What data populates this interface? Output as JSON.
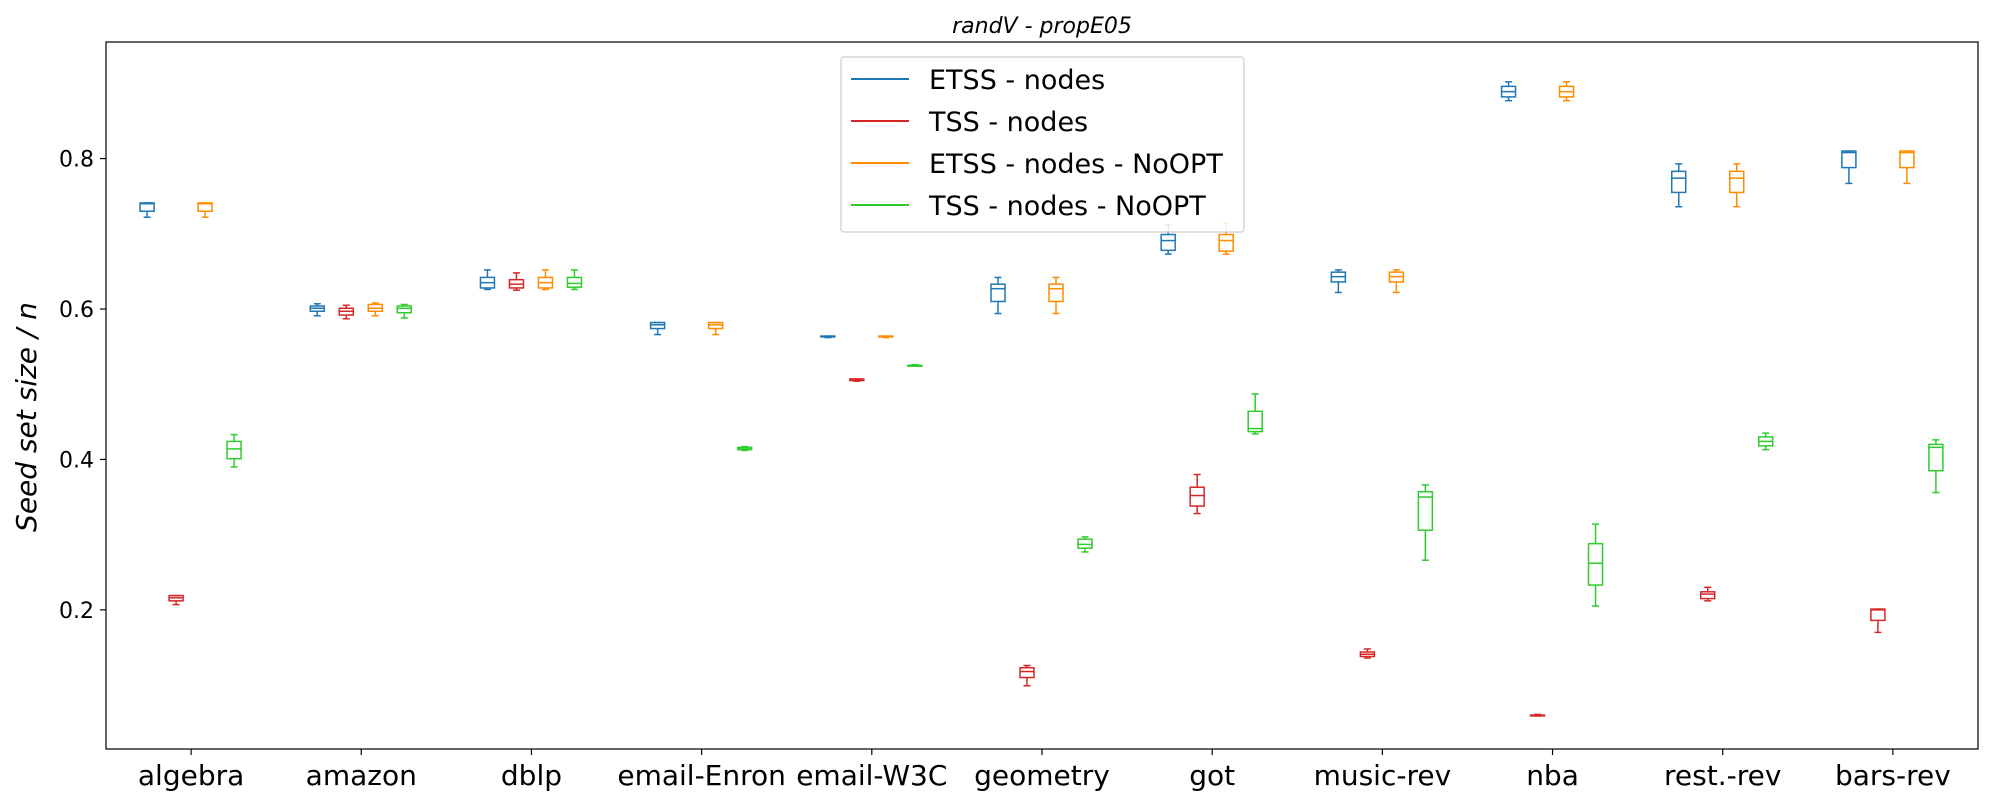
{
  "chart_data": {
    "type": "box",
    "title": "randV - propE05",
    "xlabel": "",
    "ylabel": "Seed set size / n",
    "ylim": [
      0.015,
      0.955
    ],
    "yticks": [
      "0.2",
      "0.4",
      "0.6",
      "0.8"
    ],
    "grid": false,
    "legend_position": "top-center",
    "categories": [
      "algebra",
      "amazon",
      "dblp",
      "email-Enron",
      "email-W3C",
      "geometry",
      "got",
      "music-rev",
      "nba",
      "rest.-rev",
      "bars-rev"
    ],
    "series": [
      {
        "name": "ETSS - nodes",
        "color": "#1f77b4",
        "boxes": [
          {
            "min": 0.722,
            "q1": 0.73,
            "median": 0.74,
            "q3": 0.741,
            "max": 0.741
          },
          {
            "min": 0.591,
            "q1": 0.597,
            "median": 0.601,
            "q3": 0.604,
            "max": 0.607
          },
          {
            "min": 0.626,
            "q1": 0.628,
            "median": 0.635,
            "q3": 0.642,
            "max": 0.652
          },
          {
            "min": 0.566,
            "q1": 0.574,
            "median": 0.579,
            "q3": 0.582,
            "max": 0.582
          },
          {
            "min": 0.562,
            "q1": 0.563,
            "median": 0.563,
            "q3": 0.564,
            "max": 0.564
          },
          {
            "min": 0.594,
            "q1": 0.61,
            "median": 0.627,
            "q3": 0.633,
            "max": 0.642
          },
          {
            "min": 0.673,
            "q1": 0.678,
            "median": 0.691,
            "q3": 0.699,
            "max": 0.712
          },
          {
            "min": 0.622,
            "q1": 0.636,
            "median": 0.643,
            "q3": 0.649,
            "max": 0.652
          },
          {
            "min": 0.877,
            "q1": 0.882,
            "median": 0.889,
            "q3": 0.896,
            "max": 0.902
          },
          {
            "min": 0.736,
            "q1": 0.755,
            "median": 0.774,
            "q3": 0.783,
            "max": 0.793
          },
          {
            "min": 0.767,
            "q1": 0.788,
            "median": 0.808,
            "q3": 0.81,
            "max": 0.81
          }
        ]
      },
      {
        "name": "TSS - nodes",
        "color": "#d62728",
        "boxes": [
          {
            "min": 0.207,
            "q1": 0.212,
            "median": 0.216,
            "q3": 0.219,
            "max": 0.219
          },
          {
            "min": 0.587,
            "q1": 0.592,
            "median": 0.597,
            "q3": 0.601,
            "max": 0.605
          },
          {
            "min": 0.625,
            "q1": 0.628,
            "median": 0.633,
            "q3": 0.639,
            "max": 0.648
          },
          null,
          {
            "min": 0.504,
            "q1": 0.505,
            "median": 0.506,
            "q3": 0.507,
            "max": 0.507
          },
          {
            "min": 0.099,
            "q1": 0.11,
            "median": 0.118,
            "q3": 0.123,
            "max": 0.126
          },
          {
            "min": 0.328,
            "q1": 0.338,
            "median": 0.352,
            "q3": 0.363,
            "max": 0.38
          },
          {
            "min": 0.136,
            "q1": 0.138,
            "median": 0.141,
            "q3": 0.144,
            "max": 0.148
          },
          {
            "min": 0.059,
            "q1": 0.059,
            "median": 0.06,
            "q3": 0.06,
            "max": 0.061
          },
          {
            "min": 0.212,
            "q1": 0.215,
            "median": 0.221,
            "q3": 0.224,
            "max": 0.23
          },
          {
            "min": 0.17,
            "q1": 0.186,
            "median": 0.2,
            "q3": 0.201,
            "max": 0.201
          }
        ]
      },
      {
        "name": "ETSS - nodes - NoOPT",
        "color": "#ff8c00",
        "boxes": [
          {
            "min": 0.722,
            "q1": 0.73,
            "median": 0.74,
            "q3": 0.741,
            "max": 0.741
          },
          {
            "min": 0.591,
            "q1": 0.597,
            "median": 0.601,
            "q3": 0.606,
            "max": 0.608
          },
          {
            "min": 0.626,
            "q1": 0.628,
            "median": 0.635,
            "q3": 0.642,
            "max": 0.652
          },
          {
            "min": 0.566,
            "q1": 0.574,
            "median": 0.579,
            "q3": 0.582,
            "max": 0.582
          },
          {
            "min": 0.562,
            "q1": 0.563,
            "median": 0.563,
            "q3": 0.564,
            "max": 0.564
          },
          {
            "min": 0.594,
            "q1": 0.61,
            "median": 0.627,
            "q3": 0.633,
            "max": 0.642
          },
          {
            "min": 0.673,
            "q1": 0.677,
            "median": 0.691,
            "q3": 0.699,
            "max": 0.714
          },
          {
            "min": 0.622,
            "q1": 0.636,
            "median": 0.643,
            "q3": 0.649,
            "max": 0.652
          },
          {
            "min": 0.877,
            "q1": 0.882,
            "median": 0.889,
            "q3": 0.896,
            "max": 0.902
          },
          {
            "min": 0.736,
            "q1": 0.755,
            "median": 0.774,
            "q3": 0.783,
            "max": 0.793
          },
          {
            "min": 0.767,
            "q1": 0.788,
            "median": 0.808,
            "q3": 0.81,
            "max": 0.81
          }
        ]
      },
      {
        "name": "TSS - nodes - NoOPT",
        "color": "#2ecc2e",
        "boxes": [
          {
            "min": 0.39,
            "q1": 0.401,
            "median": 0.414,
            "q3": 0.424,
            "max": 0.433
          },
          {
            "min": 0.588,
            "q1": 0.595,
            "median": 0.601,
            "q3": 0.604,
            "max": 0.606
          },
          {
            "min": 0.626,
            "q1": 0.629,
            "median": 0.634,
            "q3": 0.642,
            "max": 0.652
          },
          {
            "min": 0.412,
            "q1": 0.413,
            "median": 0.415,
            "q3": 0.416,
            "max": 0.417
          },
          {
            "min": 0.524,
            "q1": 0.524,
            "median": 0.525,
            "q3": 0.525,
            "max": 0.526
          },
          {
            "min": 0.277,
            "q1": 0.282,
            "median": 0.287,
            "q3": 0.294,
            "max": 0.297
          },
          {
            "min": 0.434,
            "q1": 0.437,
            "median": 0.441,
            "q3": 0.464,
            "max": 0.487
          },
          {
            "min": 0.266,
            "q1": 0.306,
            "median": 0.35,
            "q3": 0.357,
            "max": 0.366
          },
          {
            "min": 0.205,
            "q1": 0.233,
            "median": 0.262,
            "q3": 0.288,
            "max": 0.314
          },
          {
            "min": 0.413,
            "q1": 0.418,
            "median": 0.424,
            "q3": 0.43,
            "max": 0.435
          },
          {
            "min": 0.356,
            "q1": 0.385,
            "median": 0.416,
            "q3": 0.42,
            "max": 0.426
          }
        ]
      }
    ]
  }
}
